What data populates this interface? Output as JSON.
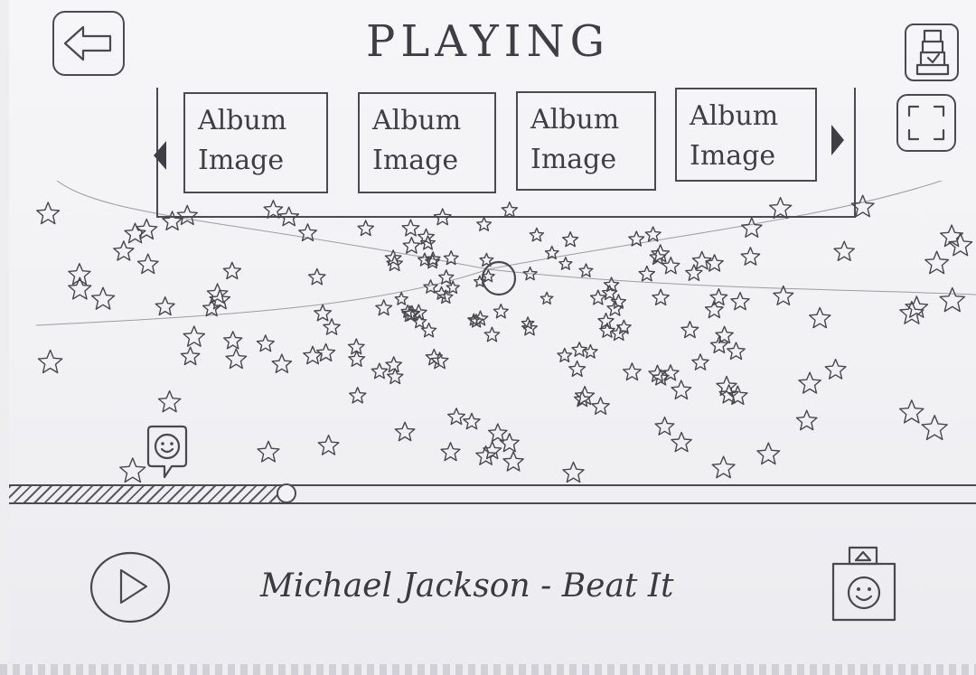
{
  "header": {
    "title": "PLAYING",
    "back_icon": "arrow-left-icon",
    "queue_icon": "playlist-icon",
    "fullscreen_icon": "fullscreen-icon"
  },
  "albums": {
    "items": [
      {
        "line1": "Album",
        "line2": "Image"
      },
      {
        "line1": "Album",
        "line2": "Image"
      },
      {
        "line1": "Album",
        "line2": "Image"
      },
      {
        "line1": "Album",
        "line2": "Image"
      }
    ],
    "prev_icon": "chevron-left-icon",
    "next_icon": "chevron-right-icon"
  },
  "visualizer": {
    "description_icon": "starfield-visualizer",
    "emoji_icon": "smiley-speech-bubble-icon"
  },
  "player": {
    "progress": 0.28,
    "play_icon": "play-icon",
    "now_playing": "Michael Jackson - Beat It",
    "mood_icon": "smiley-card-icon",
    "eject_icon": "eject-icon"
  },
  "colors": {
    "pencil": "#48484d",
    "paper": "#f3f3f6"
  }
}
